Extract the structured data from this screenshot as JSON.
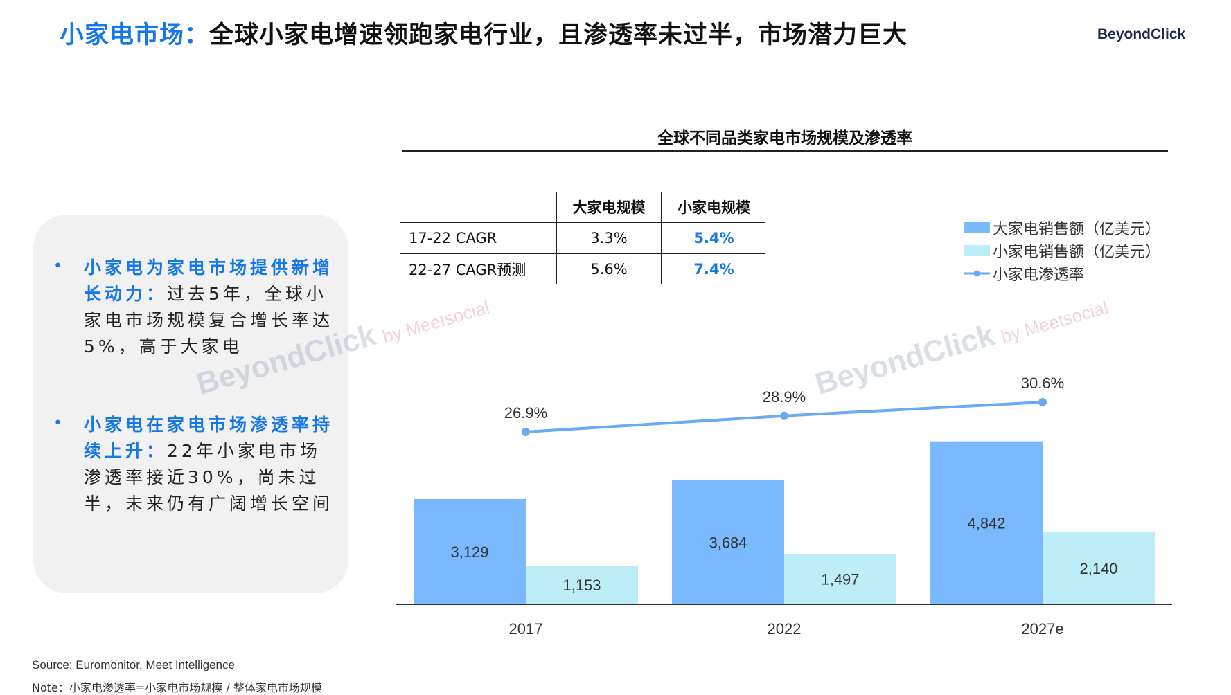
{
  "header": {
    "title_highlight": "小家电市场：",
    "title_rest": "全球小家电增速领跑家电行业，且渗透率未过半，市场潜力巨大",
    "logo": "BeyondClick"
  },
  "panel": {
    "bullets": [
      {
        "lead": "小家电为家电市场提供新增长动力：",
        "text": "过去5年，全球小家电市场规模复合增长率达5%，高于大家电"
      },
      {
        "lead": "小家电在家电市场渗透率持续上升：",
        "text": "22年小家电市场渗透率接近30%，尚未过半，未来仍有广阔增长空间"
      }
    ]
  },
  "table": {
    "headers": [
      "",
      "大家电规模",
      "小家电规模"
    ],
    "rows": [
      {
        "label": "17-22 CAGR",
        "large": "3.3%",
        "small": "5.4%"
      },
      {
        "label": "22-27 CAGR预测",
        "large": "5.6%",
        "small": "7.4%"
      }
    ]
  },
  "watermarks": {
    "brand": "BeyondClick",
    "sub": "by Meetsocial"
  },
  "footer": {
    "source": "Source: Euromonitor, Meet Intelligence",
    "note": "Note：小家电渗透率=小家电市场规模 / 整体家电市场规模"
  },
  "chart_data": {
    "type": "bar",
    "title": "全球不同品类家电市场规模及渗透率",
    "categories": [
      "2017",
      "2022",
      "2027e"
    ],
    "series": [
      {
        "name": "大家电销售额（亿美元）",
        "type": "bar",
        "color": "#7ab8ff",
        "values": [
          3129,
          3684,
          4842
        ],
        "labels": [
          "3,129",
          "3,684",
          "4,842"
        ]
      },
      {
        "name": "小家电销售额（亿美元）",
        "type": "bar",
        "color": "#bdeef7",
        "values": [
          1153,
          1497,
          2140
        ],
        "labels": [
          "1,153",
          "1,497",
          "2,140"
        ]
      },
      {
        "name": "小家电渗透率",
        "type": "line",
        "color": "#6aaaf2",
        "values": [
          26.9,
          28.9,
          30.6
        ],
        "labels": [
          "26.9%",
          "28.9%",
          "30.6%"
        ]
      }
    ],
    "legend_position": "top-right",
    "grid": false
  }
}
